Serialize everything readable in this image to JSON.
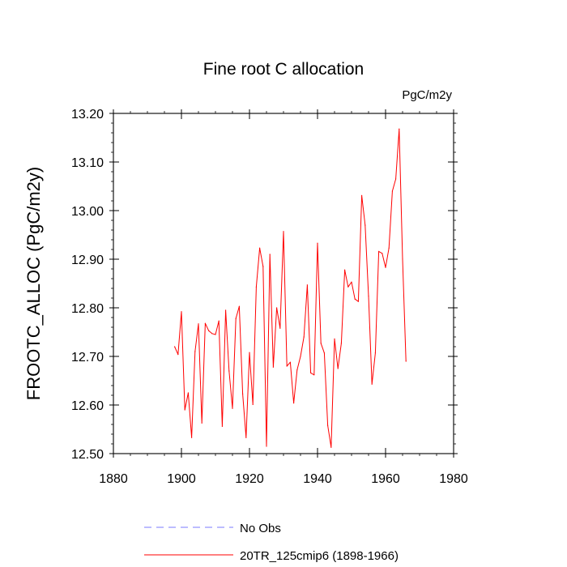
{
  "chart_data": {
    "type": "line",
    "title": "Fine root C allocation",
    "units": "PgC/m2y",
    "ylabel": "FROOTC_ALLOC  (PgC/m2y)",
    "xlabel": "",
    "xlim": [
      1880,
      1980
    ],
    "ylim": [
      12.5,
      13.2
    ],
    "x_major_ticks": [
      1880,
      1900,
      1920,
      1940,
      1960,
      1980
    ],
    "x_tick_labels": [
      "1880",
      "1900",
      "1920",
      "1940",
      "1960",
      "1980"
    ],
    "y_major_ticks": [
      12.5,
      12.6,
      12.7,
      12.8,
      12.9,
      13.0,
      13.1,
      13.2
    ],
    "y_tick_labels": [
      "12.50",
      "12.60",
      "12.70",
      "12.80",
      "12.90",
      "13.00",
      "13.10",
      "13.20"
    ],
    "grid": false,
    "legend": [
      {
        "name": "No Obs",
        "color": "#7a7aff",
        "dashed": true
      },
      {
        "name": "20TR_125cmip6 (1898-1966)",
        "color": "#ff0000",
        "dashed": false
      }
    ],
    "legend_position": "bottom",
    "series": [
      {
        "name": "20TR_125cmip6 (1898-1966)",
        "color": "#ff0000",
        "x": [
          1898,
          1899,
          1900,
          1901,
          1902,
          1903,
          1904,
          1905,
          1906,
          1907,
          1908,
          1909,
          1910,
          1911,
          1912,
          1913,
          1914,
          1915,
          1916,
          1917,
          1918,
          1919,
          1920,
          1921,
          1922,
          1923,
          1924,
          1925,
          1926,
          1927,
          1928,
          1929,
          1930,
          1931,
          1932,
          1933,
          1934,
          1935,
          1936,
          1937,
          1938,
          1939,
          1940,
          1941,
          1942,
          1943,
          1944,
          1945,
          1946,
          1947,
          1948,
          1949,
          1950,
          1951,
          1952,
          1953,
          1954,
          1955,
          1956,
          1957,
          1958,
          1959,
          1960,
          1961,
          1962,
          1963,
          1964,
          1965,
          1966
        ],
        "values": [
          12.72,
          12.704,
          12.792,
          12.59,
          12.625,
          12.533,
          12.71,
          12.767,
          12.563,
          12.768,
          12.753,
          12.747,
          12.745,
          12.773,
          12.556,
          12.795,
          12.67,
          12.593,
          12.778,
          12.803,
          12.623,
          12.533,
          12.708,
          12.601,
          12.843,
          12.923,
          12.885,
          12.515,
          12.91,
          12.678,
          12.8,
          12.758,
          12.957,
          12.68,
          12.688,
          12.604,
          12.672,
          12.7,
          12.74,
          12.847,
          12.666,
          12.662,
          12.933,
          12.727,
          12.707,
          12.558,
          12.513,
          12.736,
          12.675,
          12.727,
          12.878,
          12.843,
          12.853,
          12.818,
          12.813,
          13.031,
          12.97,
          12.824,
          12.643,
          12.707,
          12.916,
          12.912,
          12.883,
          12.923,
          13.04,
          13.065,
          13.168,
          12.9,
          12.69
        ]
      }
    ]
  }
}
